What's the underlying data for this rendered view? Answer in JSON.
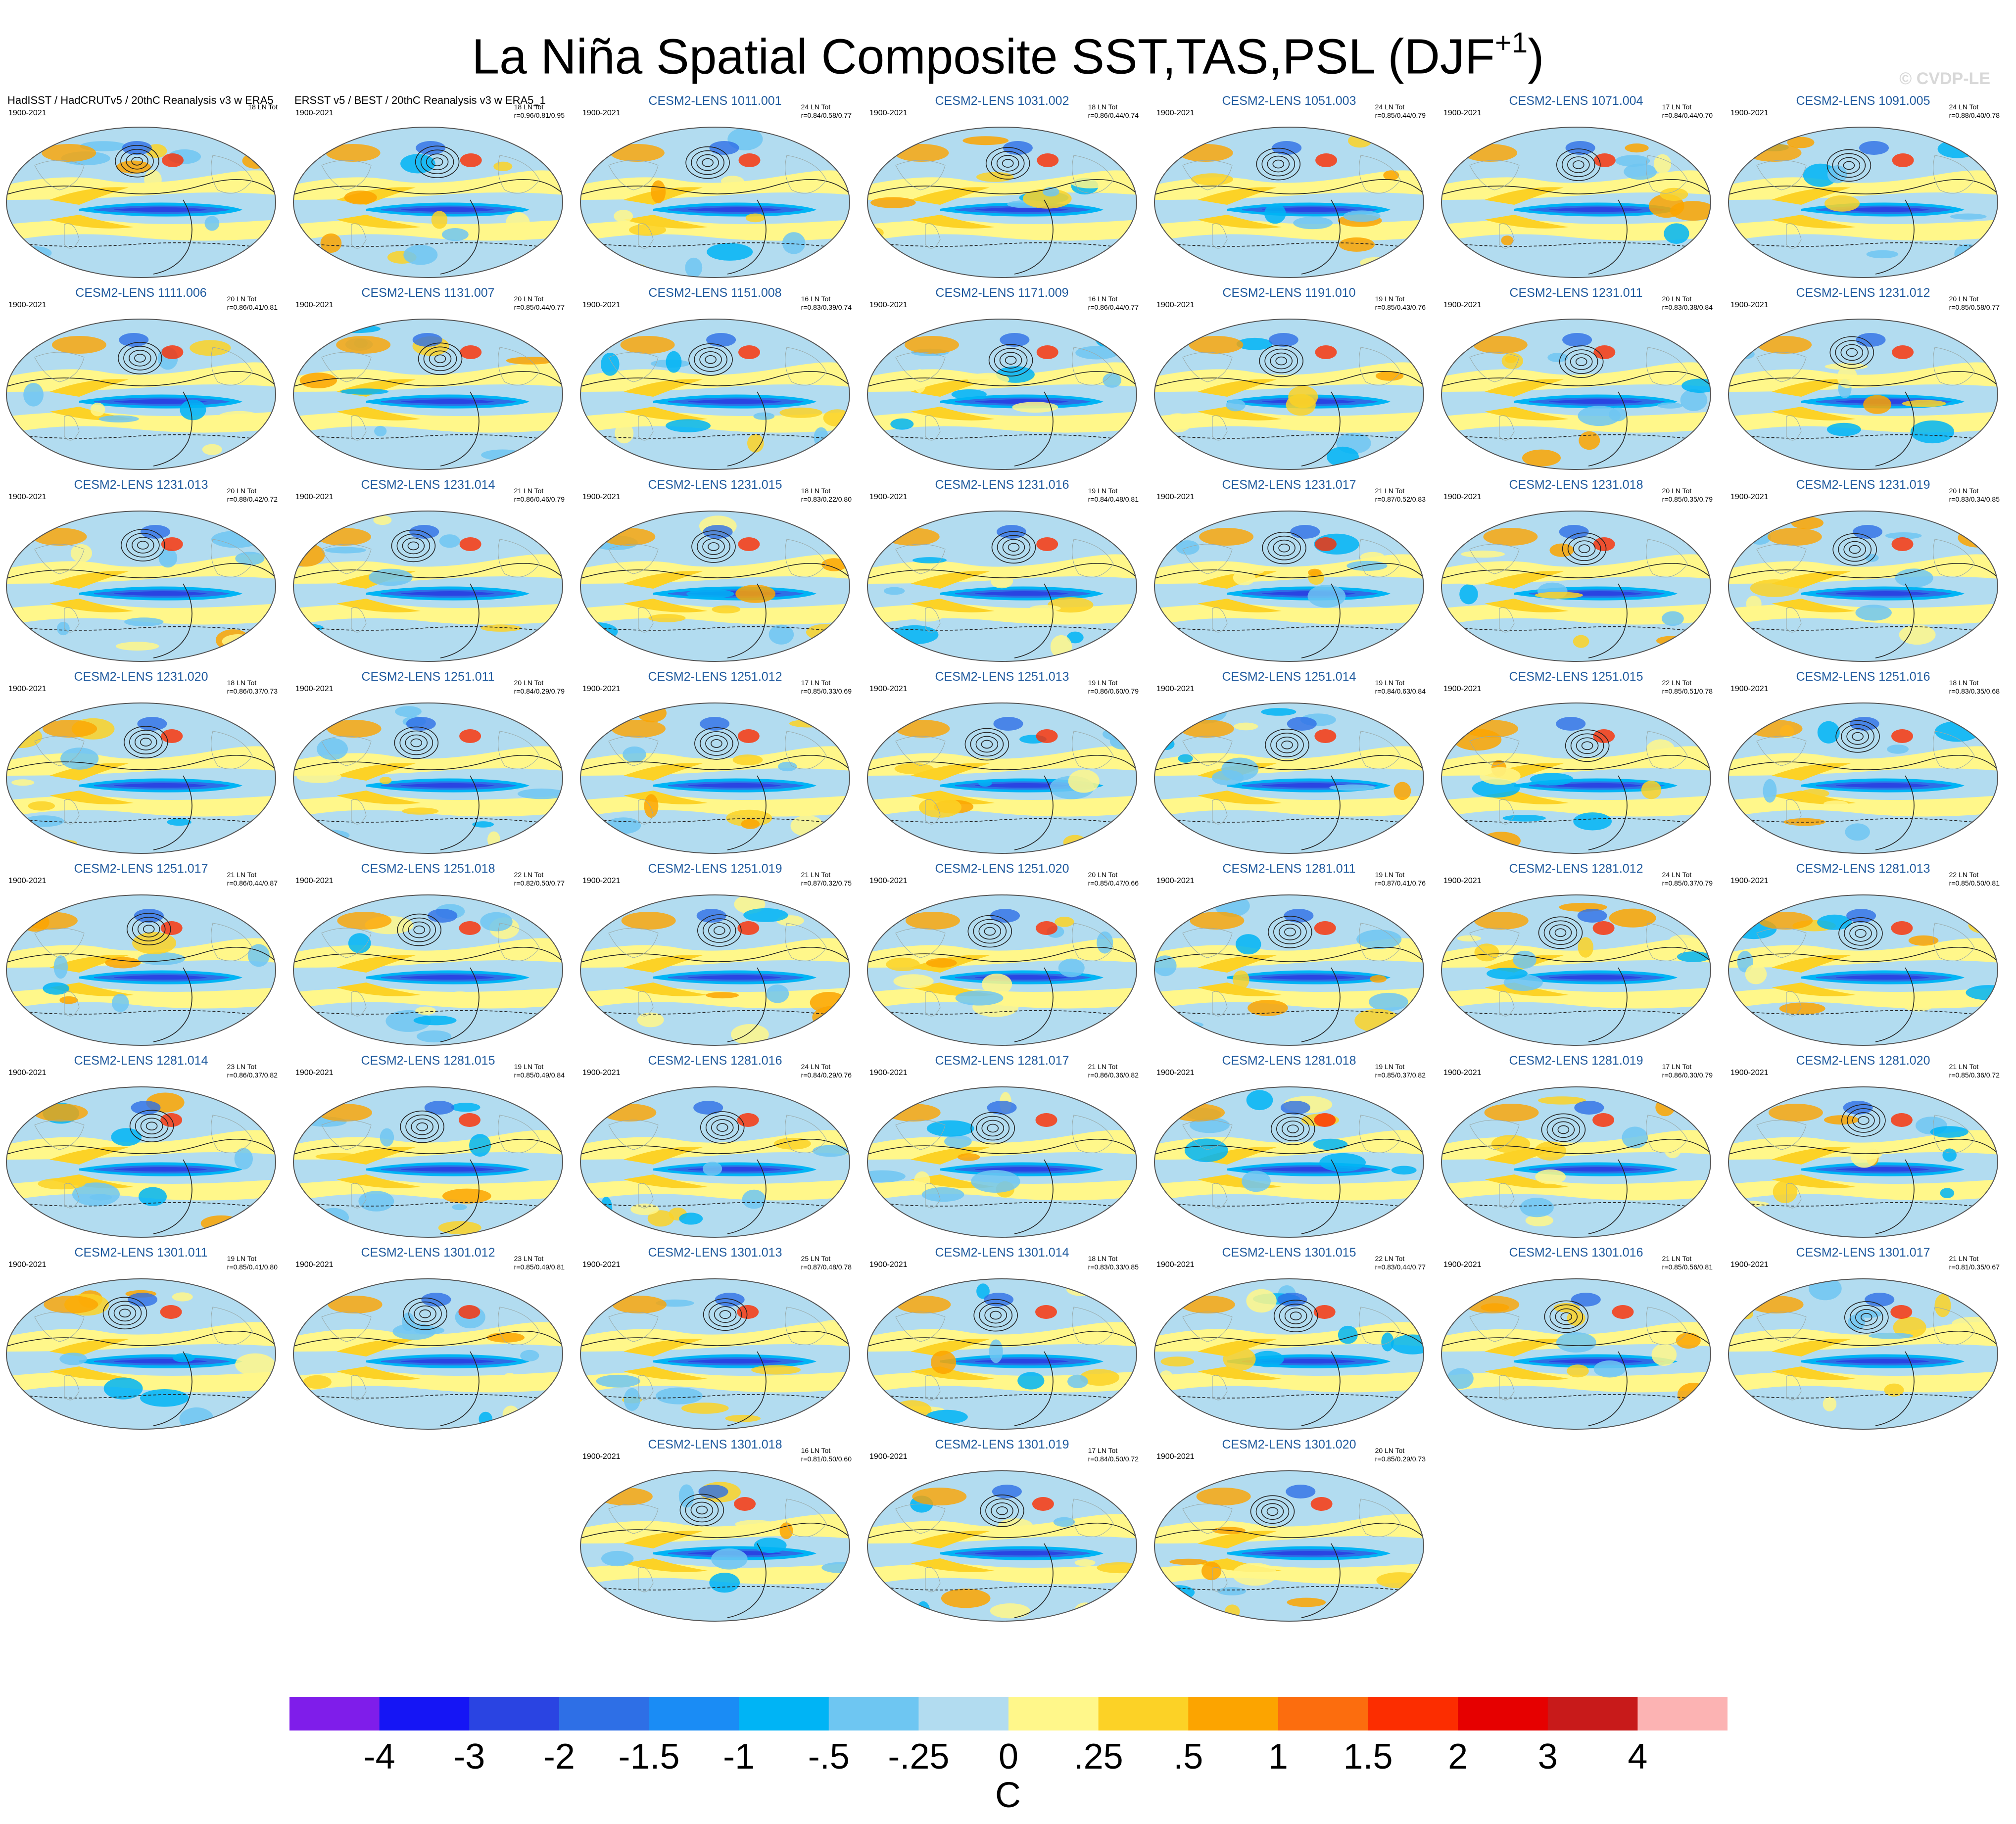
{
  "title_main": "La Niña Spatial Composite SST,TAS,PSL (DJF",
  "title_sup": "+1",
  "title_close": ")",
  "watermark": "© CVDP-LE",
  "palette": [
    "#7f1dea",
    "#1515f5",
    "#2a44e2",
    "#2e6fe6",
    "#1a8cf5",
    "#00b4f5",
    "#6ec6f2",
    "#b2dcf0",
    "#fff78a",
    "#fcd226",
    "#fca400",
    "#fc6d0e",
    "#fc2d00",
    "#e60000",
    "#c81a1a",
    "#fcb3b3"
  ],
  "colorbar_ticks": [
    "-4",
    "-3",
    "-2",
    "-1.5",
    "-1",
    "-.5",
    "-.25",
    "0",
    ".25",
    ".5",
    "1",
    "1.5",
    "2",
    "3",
    "4"
  ],
  "colorbar_units": "C",
  "panels": [
    {
      "title": "HadISST / HadCRUTv5 / 20thC Reanalysis v3 w ERA5",
      "period": "1900-2021",
      "count": "18 LN Tot",
      "stat": "",
      "obs": true
    },
    {
      "title": "ERSST v5 / BEST / 20thC Reanalysis v3 w ERA5_1",
      "period": "1900-2021",
      "count": "18 LN Tot",
      "stat": "r=0.96/0.81/0.95",
      "obs": true
    },
    {
      "title": "CESM2-LENS 1011.001",
      "period": "1900-2021",
      "count": "24 LN Tot",
      "stat": "r=0.84/0.58/0.77"
    },
    {
      "title": "CESM2-LENS 1031.002",
      "period": "1900-2021",
      "count": "18 LN Tot",
      "stat": "r=0.86/0.44/0.74"
    },
    {
      "title": "CESM2-LENS 1051.003",
      "period": "1900-2021",
      "count": "24 LN Tot",
      "stat": "r=0.85/0.44/0.79"
    },
    {
      "title": "CESM2-LENS 1071.004",
      "period": "1900-2021",
      "count": "17 LN Tot",
      "stat": "r=0.84/0.44/0.70"
    },
    {
      "title": "CESM2-LENS 1091.005",
      "period": "1900-2021",
      "count": "24 LN Tot",
      "stat": "r=0.88/0.40/0.78"
    },
    {
      "title": "CESM2-LENS 1111.006",
      "period": "1900-2021",
      "count": "20 LN Tot",
      "stat": "r=0.86/0.41/0.81"
    },
    {
      "title": "CESM2-LENS 1131.007",
      "period": "1900-2021",
      "count": "20 LN Tot",
      "stat": "r=0.85/0.44/0.77"
    },
    {
      "title": "CESM2-LENS 1151.008",
      "period": "1900-2021",
      "count": "16 LN Tot",
      "stat": "r=0.83/0.39/0.74"
    },
    {
      "title": "CESM2-LENS 1171.009",
      "period": "1900-2021",
      "count": "16 LN Tot",
      "stat": "r=0.86/0.44/0.77"
    },
    {
      "title": "CESM2-LENS 1191.010",
      "period": "1900-2021",
      "count": "19 LN Tot",
      "stat": "r=0.85/0.43/0.76"
    },
    {
      "title": "CESM2-LENS 1231.011",
      "period": "1900-2021",
      "count": "20 LN Tot",
      "stat": "r=0.83/0.38/0.84"
    },
    {
      "title": "CESM2-LENS 1231.012",
      "period": "1900-2021",
      "count": "20 LN Tot",
      "stat": "r=0.85/0.58/0.77"
    },
    {
      "title": "CESM2-LENS 1231.013",
      "period": "1900-2021",
      "count": "20 LN Tot",
      "stat": "r=0.88/0.42/0.72"
    },
    {
      "title": "CESM2-LENS 1231.014",
      "period": "1900-2021",
      "count": "21 LN Tot",
      "stat": "r=0.86/0.46/0.79"
    },
    {
      "title": "CESM2-LENS 1231.015",
      "period": "1900-2021",
      "count": "18 LN Tot",
      "stat": "r=0.83/0.22/0.80"
    },
    {
      "title": "CESM2-LENS 1231.016",
      "period": "1900-2021",
      "count": "19 LN Tot",
      "stat": "r=0.84/0.48/0.81"
    },
    {
      "title": "CESM2-LENS 1231.017",
      "period": "1900-2021",
      "count": "21 LN Tot",
      "stat": "r=0.87/0.52/0.83"
    },
    {
      "title": "CESM2-LENS 1231.018",
      "period": "1900-2021",
      "count": "20 LN Tot",
      "stat": "r=0.85/0.35/0.79"
    },
    {
      "title": "CESM2-LENS 1231.019",
      "period": "1900-2021",
      "count": "20 LN Tot",
      "stat": "r=0.83/0.34/0.85"
    },
    {
      "title": "CESM2-LENS 1231.020",
      "period": "1900-2021",
      "count": "18 LN Tot",
      "stat": "r=0.86/0.37/0.73"
    },
    {
      "title": "CESM2-LENS 1251.011",
      "period": "1900-2021",
      "count": "20 LN Tot",
      "stat": "r=0.84/0.29/0.79"
    },
    {
      "title": "CESM2-LENS 1251.012",
      "period": "1900-2021",
      "count": "17 LN Tot",
      "stat": "r=0.85/0.33/0.69"
    },
    {
      "title": "CESM2-LENS 1251.013",
      "period": "1900-2021",
      "count": "19 LN Tot",
      "stat": "r=0.86/0.60/0.79"
    },
    {
      "title": "CESM2-LENS 1251.014",
      "period": "1900-2021",
      "count": "19 LN Tot",
      "stat": "r=0.84/0.63/0.84"
    },
    {
      "title": "CESM2-LENS 1251.015",
      "period": "1900-2021",
      "count": "22 LN Tot",
      "stat": "r=0.85/0.51/0.78"
    },
    {
      "title": "CESM2-LENS 1251.016",
      "period": "1900-2021",
      "count": "18 LN Tot",
      "stat": "r=0.83/0.35/0.68"
    },
    {
      "title": "CESM2-LENS 1251.017",
      "period": "1900-2021",
      "count": "21 LN Tot",
      "stat": "r=0.86/0.44/0.87"
    },
    {
      "title": "CESM2-LENS 1251.018",
      "period": "1900-2021",
      "count": "22 LN Tot",
      "stat": "r=0.82/0.50/0.77"
    },
    {
      "title": "CESM2-LENS 1251.019",
      "period": "1900-2021",
      "count": "21 LN Tot",
      "stat": "r=0.87/0.32/0.75"
    },
    {
      "title": "CESM2-LENS 1251.020",
      "period": "1900-2021",
      "count": "20 LN Tot",
      "stat": "r=0.85/0.47/0.66"
    },
    {
      "title": "CESM2-LENS 1281.011",
      "period": "1900-2021",
      "count": "19 LN Tot",
      "stat": "r=0.87/0.41/0.76"
    },
    {
      "title": "CESM2-LENS 1281.012",
      "period": "1900-2021",
      "count": "24 LN Tot",
      "stat": "r=0.85/0.37/0.79"
    },
    {
      "title": "CESM2-LENS 1281.013",
      "period": "1900-2021",
      "count": "22 LN Tot",
      "stat": "r=0.85/0.50/0.81"
    },
    {
      "title": "CESM2-LENS 1281.014",
      "period": "1900-2021",
      "count": "23 LN Tot",
      "stat": "r=0.86/0.37/0.82"
    },
    {
      "title": "CESM2-LENS 1281.015",
      "period": "1900-2021",
      "count": "19 LN Tot",
      "stat": "r=0.85/0.49/0.84"
    },
    {
      "title": "CESM2-LENS 1281.016",
      "period": "1900-2021",
      "count": "24 LN Tot",
      "stat": "r=0.84/0.29/0.76"
    },
    {
      "title": "CESM2-LENS 1281.017",
      "period": "1900-2021",
      "count": "21 LN Tot",
      "stat": "r=0.86/0.36/0.82"
    },
    {
      "title": "CESM2-LENS 1281.018",
      "period": "1900-2021",
      "count": "19 LN Tot",
      "stat": "r=0.85/0.37/0.82"
    },
    {
      "title": "CESM2-LENS 1281.019",
      "period": "1900-2021",
      "count": "17 LN Tot",
      "stat": "r=0.86/0.30/0.79"
    },
    {
      "title": "CESM2-LENS 1281.020",
      "period": "1900-2021",
      "count": "21 LN Tot",
      "stat": "r=0.85/0.36/0.72"
    },
    {
      "title": "CESM2-LENS 1301.011",
      "period": "1900-2021",
      "count": "19 LN Tot",
      "stat": "r=0.85/0.41/0.80"
    },
    {
      "title": "CESM2-LENS 1301.012",
      "period": "1900-2021",
      "count": "23 LN Tot",
      "stat": "r=0.85/0.49/0.81"
    },
    {
      "title": "CESM2-LENS 1301.013",
      "period": "1900-2021",
      "count": "25 LN Tot",
      "stat": "r=0.87/0.48/0.78"
    },
    {
      "title": "CESM2-LENS 1301.014",
      "period": "1900-2021",
      "count": "18 LN Tot",
      "stat": "r=0.83/0.33/0.85"
    },
    {
      "title": "CESM2-LENS 1301.015",
      "period": "1900-2021",
      "count": "22 LN Tot",
      "stat": "r=0.83/0.44/0.77"
    },
    {
      "title": "CESM2-LENS 1301.016",
      "period": "1900-2021",
      "count": "21 LN Tot",
      "stat": "r=0.85/0.56/0.81"
    },
    {
      "title": "CESM2-LENS 1301.017",
      "period": "1900-2021",
      "count": "21 LN Tot",
      "stat": "r=0.81/0.35/0.67"
    },
    {
      "title": "CESM2-LENS 1301.018",
      "period": "1900-2021",
      "count": "16 LN Tot",
      "stat": "r=0.81/0.50/0.60"
    },
    {
      "title": "CESM2-LENS 1301.019",
      "period": "1900-2021",
      "count": "17 LN Tot",
      "stat": "r=0.84/0.50/0.72"
    },
    {
      "title": "CESM2-LENS 1301.020",
      "period": "1900-2021",
      "count": "20 LN Tot",
      "stat": "r=0.85/0.29/0.73"
    }
  ]
}
